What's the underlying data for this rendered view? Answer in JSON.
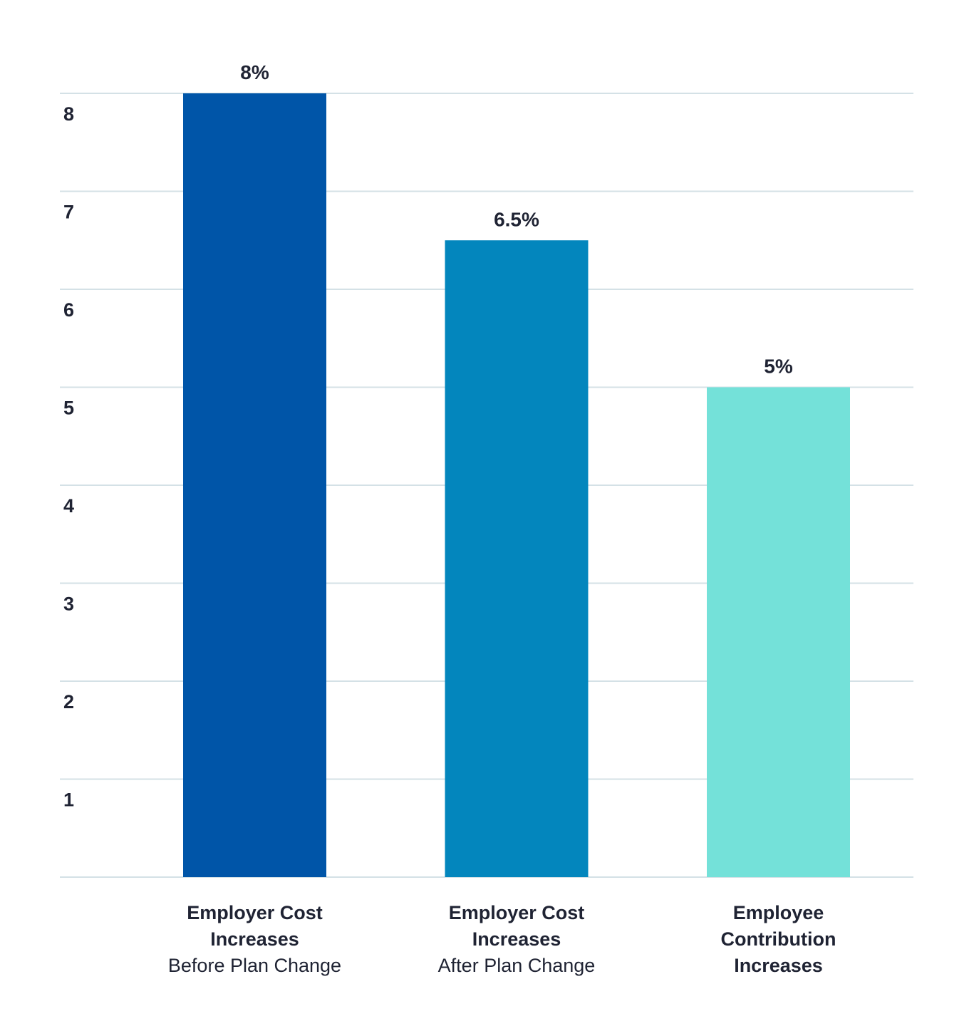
{
  "chart_data": {
    "type": "bar",
    "title": "",
    "xlabel": "",
    "ylabel": "",
    "ylim": [
      0,
      8
    ],
    "y_ticks": [
      "1",
      "2",
      "3",
      "4",
      "5",
      "6",
      "7",
      "8"
    ],
    "grid": true,
    "categories": [
      {
        "label_lines": [
          {
            "text": "Employer Cost",
            "bold": true
          },
          {
            "text": "Increases",
            "bold": true
          },
          {
            "text": "Before Plan Change",
            "bold": false
          }
        ]
      },
      {
        "label_lines": [
          {
            "text": "Employer Cost",
            "bold": true
          },
          {
            "text": "Increases",
            "bold": true
          },
          {
            "text": "After Plan Change",
            "bold": false
          }
        ]
      },
      {
        "label_lines": [
          {
            "text": "Employee",
            "bold": true
          },
          {
            "text": "Contribution",
            "bold": true
          },
          {
            "text": "Increases",
            "bold": true
          }
        ]
      }
    ],
    "values": [
      8,
      6.5,
      5
    ],
    "value_labels": [
      "8%",
      "6.5%",
      "5%"
    ],
    "colors": [
      "#0055a8",
      "#0386bd",
      "#74e1d9"
    ],
    "gridline_color": "#d4e1e6"
  }
}
